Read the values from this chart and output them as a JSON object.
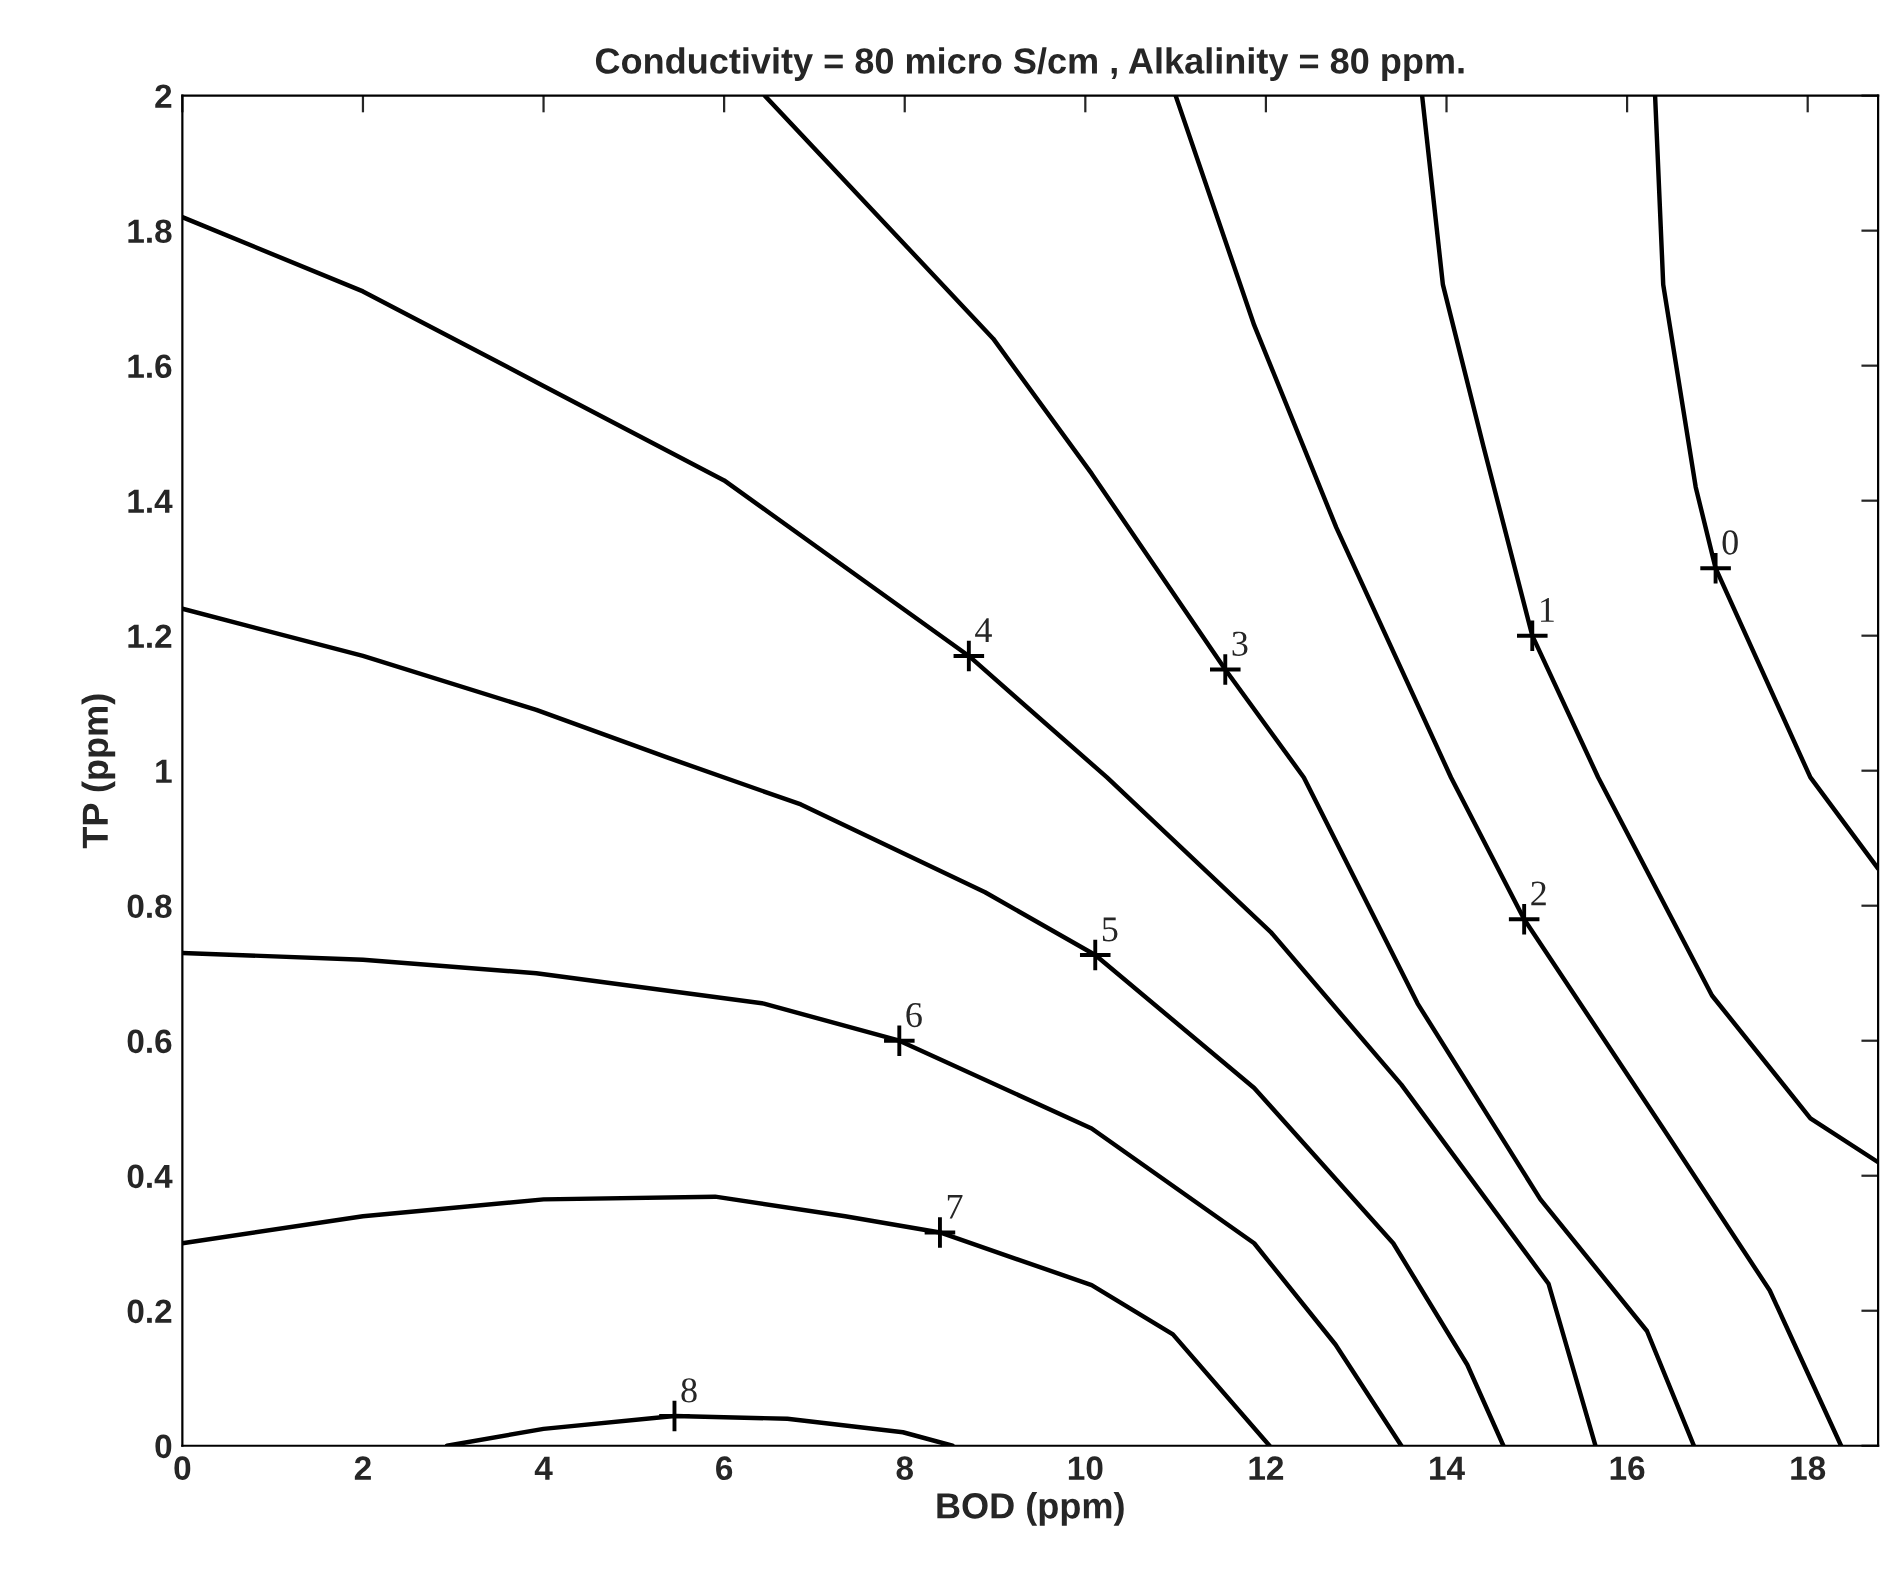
{
  "chart_data": {
    "type": "line",
    "title": "Conductivity = 80 micro S/cm , Alkalinity = 80 ppm.",
    "xlabel": "BOD (ppm)",
    "ylabel": "TP (ppm)",
    "xlim": [
      0,
      18.78
    ],
    "ylim": [
      0,
      2
    ],
    "xticks": [
      0,
      2,
      4,
      6,
      8,
      10,
      12,
      14,
      16,
      18
    ],
    "yticks": [
      0,
      0.2,
      0.4,
      0.6,
      0.8,
      1,
      1.2,
      1.4,
      1.6,
      1.8,
      2
    ],
    "series": [
      {
        "color": "#000000",
        "x": [
          16.31,
          16.4,
          16.76,
          16.98,
          18.03,
          18.78
        ],
        "values": [
          2,
          1.72,
          1.42,
          1.3,
          0.99,
          0.855
        ]
      },
      {
        "color": "#000000",
        "x": [
          13.73,
          13.96,
          14.41,
          14.95,
          15.68,
          16.94,
          18.03,
          18.78
        ],
        "values": [
          2,
          1.72,
          1.48,
          1.2,
          0.99,
          0.667,
          0.485,
          0.42
        ]
      },
      {
        "color": "#000000",
        "x": [
          11.0,
          11.87,
          12.78,
          14.05,
          14.86,
          16.4,
          17.58,
          18.37
        ],
        "values": [
          2,
          1.66,
          1.36,
          0.99,
          0.78,
          0.47,
          0.23,
          0
        ]
      },
      {
        "color": "#000000",
        "x": [
          6.45,
          8.98,
          10.07,
          11.55,
          12.42,
          13.68,
          15.04,
          16.22,
          16.74
        ],
        "values": [
          2,
          1.64,
          1.44,
          1.15,
          0.99,
          0.655,
          0.365,
          0.17,
          0
        ]
      },
      {
        "color": "#000000",
        "x": [
          0,
          2,
          4,
          6,
          8.71,
          10.24,
          12.06,
          13.5,
          15.13,
          15.65
        ],
        "values": [
          1.82,
          1.71,
          1.57,
          1.43,
          1.17,
          0.99,
          0.76,
          0.535,
          0.24,
          0
        ]
      },
      {
        "color": "#000000",
        "x": [
          0,
          2,
          3.92,
          5.36,
          6.85,
          8.89,
          10.11,
          11.87,
          13.41,
          14.23,
          14.63
        ],
        "values": [
          1.24,
          1.17,
          1.09,
          1.02,
          0.95,
          0.82,
          0.727,
          0.53,
          0.3,
          0.12,
          0
        ]
      },
      {
        "color": "#000000",
        "x": [
          0,
          2,
          3.92,
          6.44,
          7.94,
          10.07,
          11.87,
          12.77,
          13.5
        ],
        "values": [
          0.73,
          0.72,
          0.7,
          0.655,
          0.6,
          0.47,
          0.3,
          0.15,
          0
        ]
      },
      {
        "color": "#000000",
        "x": [
          0,
          2,
          4,
          5.9,
          7.34,
          8.39,
          10.07,
          10.97,
          12.04
        ],
        "values": [
          0.3,
          0.34,
          0.365,
          0.369,
          0.34,
          0.316,
          0.238,
          0.165,
          0
        ]
      },
      {
        "color": "#000000",
        "x": [
          2.93,
          4,
          5.45,
          6.7,
          7.98,
          8.53
        ],
        "values": [
          0,
          0.025,
          0.044,
          0.04,
          0.02,
          0
        ]
      }
    ],
    "annotations": [
      {
        "text": "0",
        "x": 16.98,
        "y": 1.3
      },
      {
        "text": "1",
        "x": 14.95,
        "y": 1.2
      },
      {
        "text": "2",
        "x": 14.86,
        "y": 0.78
      },
      {
        "text": "3",
        "x": 11.55,
        "y": 1.15
      },
      {
        "text": "4",
        "x": 8.71,
        "y": 1.17
      },
      {
        "text": "5",
        "x": 10.11,
        "y": 0.727
      },
      {
        "text": "6",
        "x": 7.94,
        "y": 0.6
      },
      {
        "text": "7",
        "x": 8.39,
        "y": 0.316
      },
      {
        "text": "8",
        "x": 5.45,
        "y": 0.044
      }
    ]
  }
}
